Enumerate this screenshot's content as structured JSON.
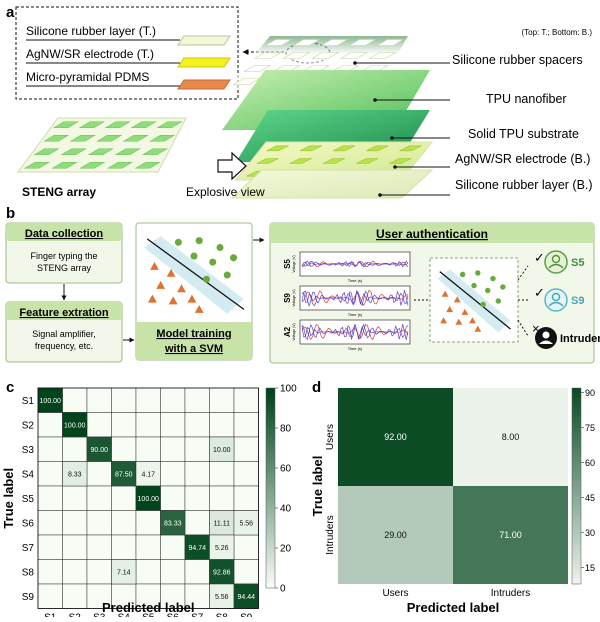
{
  "panels": {
    "a": "a",
    "b": "b",
    "c": "c",
    "d": "d"
  },
  "panel_a": {
    "legend": {
      "silicone": "Silicone rubber layer (T.)",
      "agnw": "AgNW/SR electrode (T.)",
      "pdms": "Micro-pyramidal PDMS"
    },
    "top_bottom_note": "(Top: T.; Bottom: B.)",
    "layers": [
      "Silicone rubber spacers",
      "TPU nanofiber",
      "Solid TPU substrate",
      "AgNW/SR electrode (B.)",
      "Silicone rubber layer (B.)"
    ],
    "array_label": "STENG array",
    "explosive_label": "Explosive view"
  },
  "panel_b": {
    "data_collection": {
      "title": "Data collection",
      "body": [
        "Finger typing the",
        "STENG array"
      ]
    },
    "feature": {
      "title": "Feature extration",
      "body": [
        "Signal amplifier,",
        "frequency, etc."
      ]
    },
    "training": {
      "line1": "Model training",
      "line2": "with a SVM"
    },
    "auth_title": "User authentication",
    "signals": [
      {
        "label": "S5",
        "ylabel": "Voltage (V)",
        "xlabel": "Time (s)"
      },
      {
        "label": "S9",
        "ylabel": "Voltage (V)",
        "xlabel": "Time (s)"
      },
      {
        "label": "A2",
        "ylabel": "Voltage (V)",
        "xlabel": "Time (s)"
      }
    ],
    "outcomes": [
      {
        "mark": "✓",
        "label": "S5"
      },
      {
        "mark": "✓",
        "label": "S9"
      },
      {
        "mark": "×",
        "label": "Intruder"
      }
    ]
  },
  "colors": {
    "green_dark": "#1f6b35",
    "green_light": "#f1f8e9",
    "cyan": "#5bc0c8",
    "orange": "#e2702e"
  },
  "chart_data": [
    {
      "id": "c",
      "type": "heatmap",
      "title": "",
      "xlabel": "Predicted label",
      "ylabel": "True label",
      "categories": [
        "S1",
        "S2",
        "S3",
        "S4",
        "S5",
        "S6",
        "S7",
        "S8",
        "S9"
      ],
      "cells": [
        {
          "row": 0,
          "col": 0,
          "value": 100.0,
          "text": "100.00"
        },
        {
          "row": 1,
          "col": 1,
          "value": 100.0,
          "text": "100.00"
        },
        {
          "row": 2,
          "col": 2,
          "value": 90.0,
          "text": "90.00"
        },
        {
          "row": 2,
          "col": 7,
          "value": 10.0,
          "text": "10.00"
        },
        {
          "row": 3,
          "col": 1,
          "value": 8.33,
          "text": "8.33"
        },
        {
          "row": 3,
          "col": 3,
          "value": 87.5,
          "text": "87.50"
        },
        {
          "row": 3,
          "col": 4,
          "value": 4.17,
          "text": "4.17"
        },
        {
          "row": 4,
          "col": 4,
          "value": 100.0,
          "text": "100.00"
        },
        {
          "row": 5,
          "col": 5,
          "value": 83.33,
          "text": "83.33"
        },
        {
          "row": 5,
          "col": 7,
          "value": 11.11,
          "text": "11.11"
        },
        {
          "row": 5,
          "col": 8,
          "value": 5.56,
          "text": "5.56"
        },
        {
          "row": 6,
          "col": 6,
          "value": 94.74,
          "text": "94.74"
        },
        {
          "row": 6,
          "col": 7,
          "value": 5.26,
          "text": "5.26"
        },
        {
          "row": 7,
          "col": 3,
          "value": 7.14,
          "text": "7.14"
        },
        {
          "row": 7,
          "col": 7,
          "value": 92.86,
          "text": "92.86"
        },
        {
          "row": 8,
          "col": 7,
          "value": 5.56,
          "text": "5.56"
        },
        {
          "row": 8,
          "col": 8,
          "value": 94.44,
          "text": "94.44"
        }
      ],
      "colorbar": {
        "range": [
          0,
          100
        ],
        "ticks": [
          "0",
          "20",
          "40",
          "60",
          "80",
          "100"
        ]
      }
    },
    {
      "id": "d",
      "type": "heatmap",
      "title": "",
      "xlabel": "Predicted label",
      "ylabel": "True label",
      "categories": [
        "Users",
        "Intruders"
      ],
      "cells": [
        {
          "row": 0,
          "col": 0,
          "value": 92.0,
          "text": "92.00"
        },
        {
          "row": 0,
          "col": 1,
          "value": 8.0,
          "text": "8.00"
        },
        {
          "row": 1,
          "col": 0,
          "value": 29.0,
          "text": "29.00"
        },
        {
          "row": 1,
          "col": 1,
          "value": 71.0,
          "text": "71.00"
        }
      ],
      "colorbar": {
        "range": [
          8,
          92
        ],
        "ticks": [
          "15",
          "30",
          "45",
          "60",
          "75",
          "90"
        ],
        "tick_values": [
          15,
          30,
          45,
          60,
          75,
          90
        ]
      }
    }
  ]
}
